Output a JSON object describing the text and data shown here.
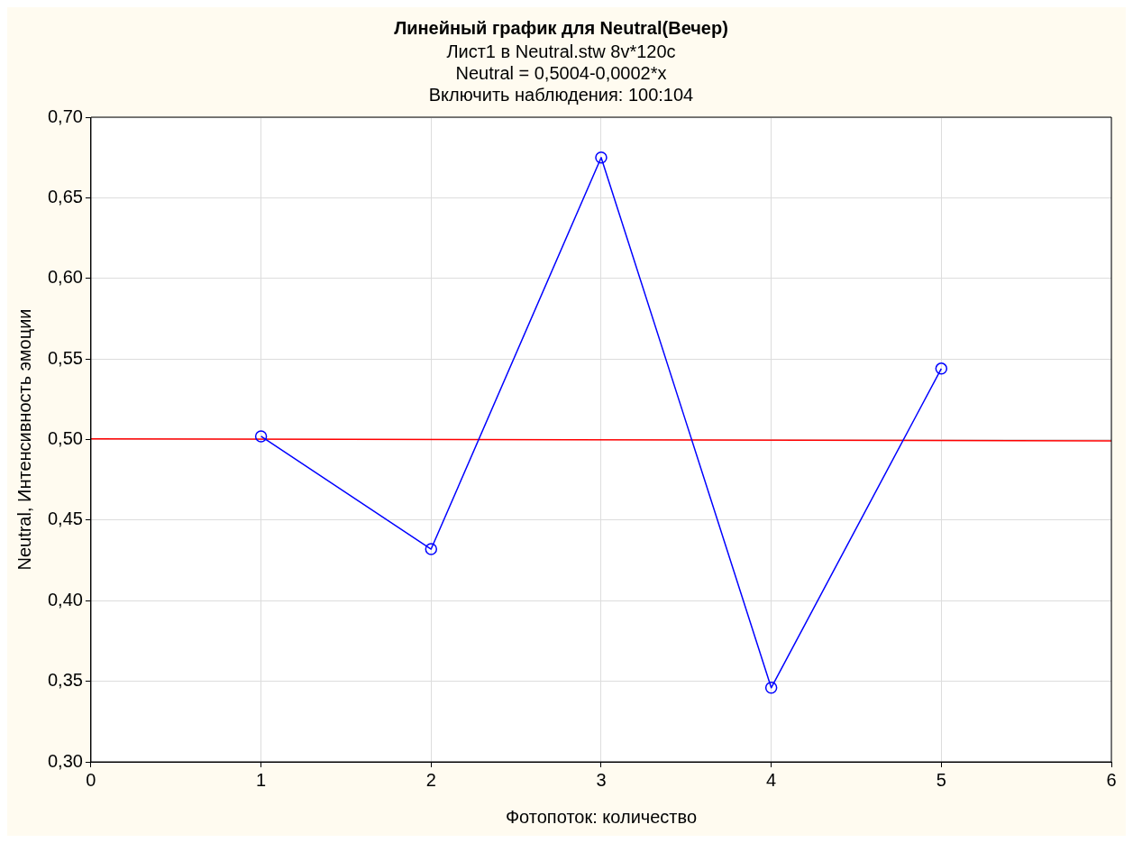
{
  "chart_data": {
    "type": "line",
    "title": "Линейный график для Neutral(Вечер)",
    "subtitle": "Лист1 в Neutral.stw 8v*120c\nNeutral = 0,5004-0,0002*x\nВключить наблюдения: 100:104",
    "xlabel": "Фотопоток: количество",
    "ylabel": "Neutral, Интенсивность эмоции",
    "x": [
      1,
      2,
      3,
      4,
      5
    ],
    "series": [
      {
        "values": [
          0.502,
          0.432,
          0.675,
          0.346,
          0.544
        ],
        "color": "#0000ff",
        "marker": "circle"
      },
      {
        "type": "line",
        "x": [
          0,
          6
        ],
        "values": [
          0.5004,
          0.4992
        ],
        "color": "#ff0000",
        "marker": "none"
      }
    ],
    "xlim": [
      0,
      6
    ],
    "xticks": [
      0,
      1,
      2,
      3,
      4,
      5,
      6
    ],
    "ylim": [
      0.3,
      0.7
    ],
    "yticks": [
      {
        "value": 0.3,
        "label": "0,30"
      },
      {
        "value": 0.35,
        "label": "0,35"
      },
      {
        "value": 0.4,
        "label": "0,40"
      },
      {
        "value": 0.45,
        "label": "0,45"
      },
      {
        "value": 0.5,
        "label": "0,50"
      },
      {
        "value": 0.55,
        "label": "0,55"
      },
      {
        "value": 0.6,
        "label": "0,60"
      },
      {
        "value": 0.65,
        "label": "0,65"
      },
      {
        "value": 0.7,
        "label": "0,70"
      }
    ],
    "grid": true,
    "legend": false,
    "line_style": "solid"
  }
}
